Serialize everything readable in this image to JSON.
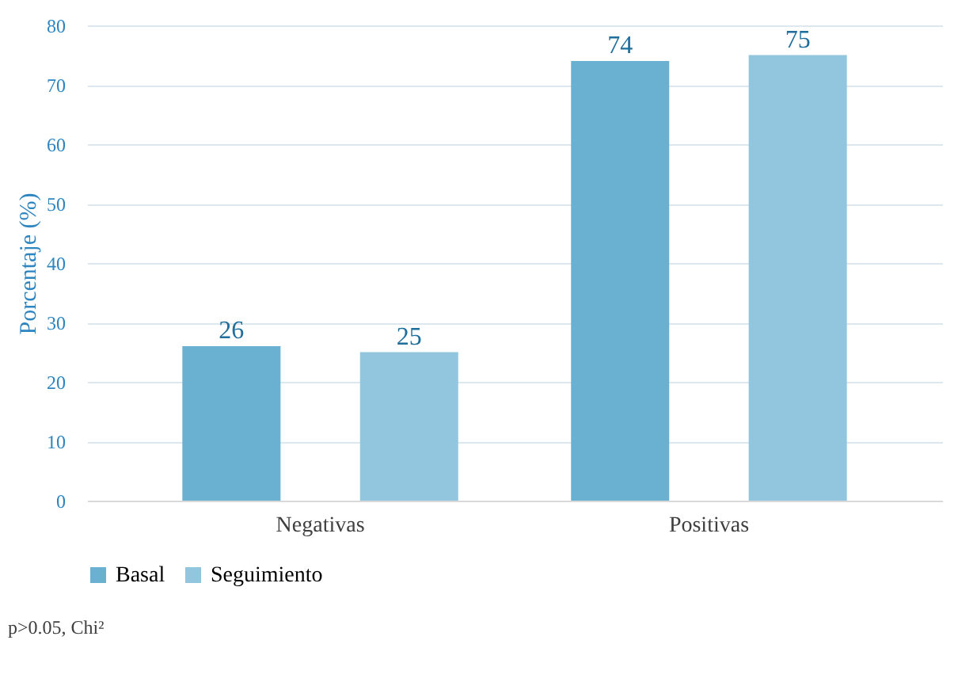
{
  "chart_data": {
    "type": "bar",
    "ylabel": "Porcentaje (%)",
    "categories": [
      "Negativas",
      "Positivas"
    ],
    "series": [
      {
        "name": "Basal",
        "color": "#6ab0d0",
        "values": [
          26,
          74
        ]
      },
      {
        "name": "Seguimiento",
        "color": "#92c5de",
        "values": [
          25,
          75
        ]
      }
    ],
    "ylim": [
      0,
      80
    ],
    "yticks": [
      0,
      10,
      20,
      30,
      40,
      50,
      60,
      70,
      80
    ],
    "grid": "y",
    "legend": "bottom",
    "data_labels": true,
    "annotations": [
      "p>0.05, Chi²"
    ]
  }
}
